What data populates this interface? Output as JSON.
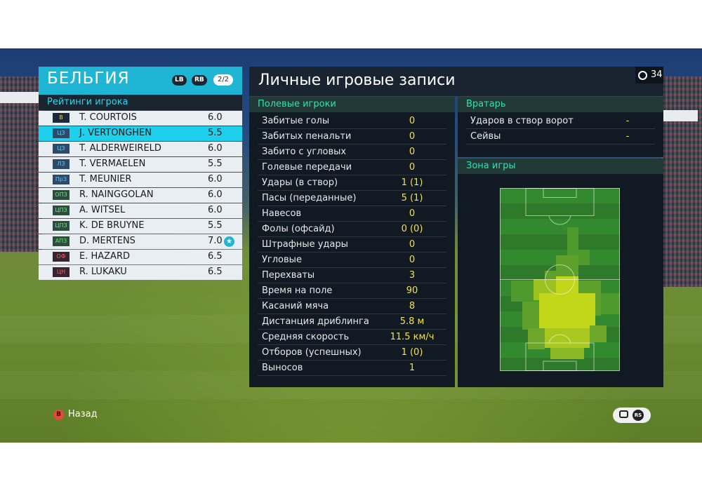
{
  "team": {
    "name": "БЕЛЬГИЯ",
    "lb_label": "LB",
    "rb_label": "RB",
    "page": "2/2",
    "ratings_title": "Рейтинги игрока",
    "players": [
      {
        "pos": "В",
        "name": "T. COURTOIS",
        "rating": "6.0",
        "pos_group": "gk"
      },
      {
        "pos": "ЦЗ",
        "name": "J. VERTONGHEN",
        "rating": "5.5",
        "pos_group": "df",
        "selected": true
      },
      {
        "pos": "ЦЗ",
        "name": "T. ALDERWEIRELD",
        "rating": "6.0",
        "pos_group": "df"
      },
      {
        "pos": "ЛЗ",
        "name": "T. VERMAELEN",
        "rating": "5.5",
        "pos_group": "df"
      },
      {
        "pos": "ПрЗ",
        "name": "T. MEUNIER",
        "rating": "6.0",
        "pos_group": "df"
      },
      {
        "pos": "ОПЗ",
        "name": "R. NAINGGOLAN",
        "rating": "6.0",
        "pos_group": "mf"
      },
      {
        "pos": "ЦПЗ",
        "name": "A. WITSEL",
        "rating": "6.0",
        "pos_group": "mf"
      },
      {
        "pos": "ЦПЗ",
        "name": "K. DE BRUYNE",
        "rating": "5.5",
        "pos_group": "mf"
      },
      {
        "pos": "АПЗ",
        "name": "D. MERTENS",
        "rating": "7.0",
        "pos_group": "mf",
        "star": true
      },
      {
        "pos": "ОФ",
        "name": "E. HAZARD",
        "rating": "6.5",
        "pos_group": "fw"
      },
      {
        "pos": "ЦН",
        "name": "R. LUKAKU",
        "rating": "6.5",
        "pos_group": "fw"
      }
    ]
  },
  "records": {
    "title": "Личные игровые записи",
    "timer": "34",
    "field_title": "Полевые игроки",
    "field_stats": [
      {
        "label": "Забитые голы",
        "value": "0"
      },
      {
        "label": "Забитых пенальти",
        "value": "0"
      },
      {
        "label": "Забито с угловых",
        "value": "0"
      },
      {
        "label": "Голевые передачи",
        "value": "0"
      },
      {
        "label": "Удары (в створ)",
        "value": "1 (1)"
      },
      {
        "label": "Пасы (переданные)",
        "value": "5 (1)"
      },
      {
        "label": "Навесов",
        "value": "0"
      },
      {
        "label": "Фолы (офсайд)",
        "value": "0 (0)"
      },
      {
        "label": "Штрафные удары",
        "value": "0"
      },
      {
        "label": "Угловые",
        "value": "0"
      },
      {
        "label": "Перехваты",
        "value": "3"
      },
      {
        "label": "Время на поле",
        "value": "90"
      },
      {
        "label": "Касаний мяча",
        "value": "8"
      },
      {
        "label": "Дистанция дриблинга",
        "value": "5.8 м"
      },
      {
        "label": "Средняя скорость",
        "value": "11.5 км/ч"
      },
      {
        "label": "Отборов (успешных)",
        "value": "1 (0)"
      },
      {
        "label": "Выносов",
        "value": "1"
      }
    ],
    "gk_title": "Вратарь",
    "gk_stats": [
      {
        "label": "Ударов в створ ворот",
        "value": "-"
      },
      {
        "label": "Сейвы",
        "value": "-"
      }
    ],
    "zone_title": "Зона игры"
  },
  "footer": {
    "back_button": "B",
    "back_label": "Назад",
    "rs_label": "RS"
  },
  "colors": {
    "accent": "#1fb6d6",
    "section_title": "#2fe3b0",
    "value_yellow": "#f5e04a"
  }
}
